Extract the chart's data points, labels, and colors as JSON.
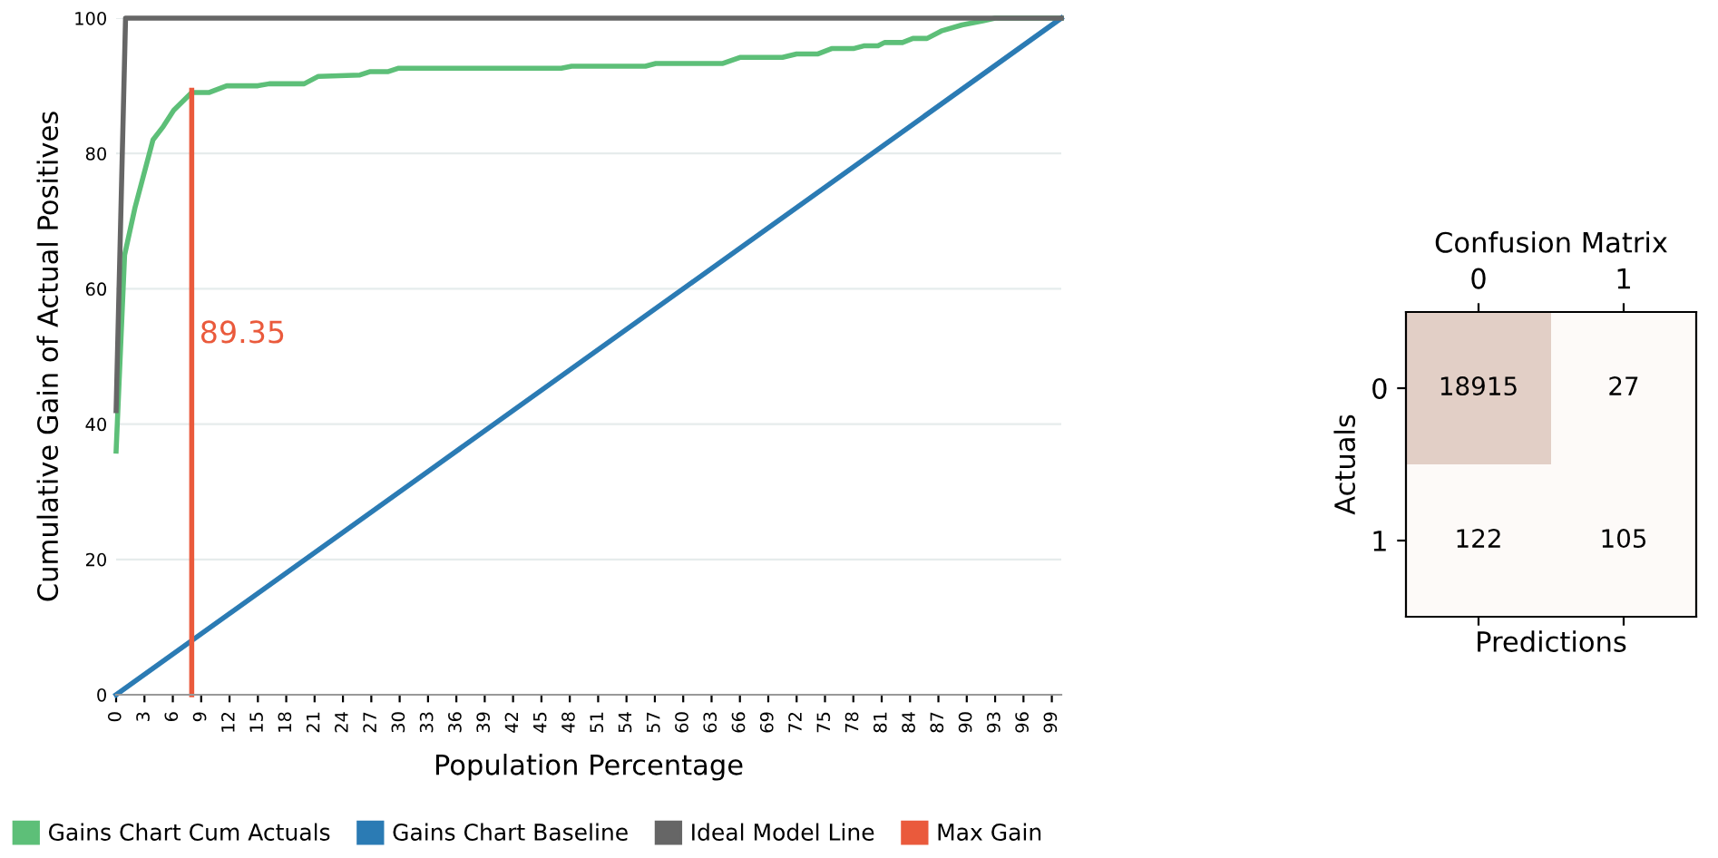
{
  "chart_data": [
    {
      "type": "line",
      "xlabel": "Population Percentage",
      "ylabel": "Cumulative Gain of Actual Positives",
      "xlim": [
        0,
        100
      ],
      "xticks": [
        0,
        3,
        6,
        9,
        12,
        15,
        18,
        21,
        24,
        27,
        30,
        33,
        36,
        39,
        42,
        45,
        48,
        51,
        54,
        57,
        60,
        63,
        66,
        69,
        72,
        75,
        78,
        81,
        84,
        87,
        90,
        93,
        96,
        99
      ],
      "ylim": [
        0,
        100
      ],
      "yticks": [
        0,
        20,
        40,
        60,
        80,
        100
      ],
      "grid": "y",
      "legend": "bottom",
      "marker": "none",
      "line_style": "solid",
      "series": [
        {
          "name": "Gains Chart Cum Actuals",
          "color": "#5dbf78",
          "x": [
            0,
            0.9,
            2.0,
            3.9,
            5.0,
            6.1,
            8.0,
            9.8,
            11.7,
            15.0,
            16.2,
            19.9,
            21.4,
            25.8,
            26.9,
            28.8,
            29.9,
            47.1,
            48.2,
            56.0,
            57.1,
            64.2,
            66.0,
            70.5,
            72.0,
            74.2,
            75.7,
            78.0,
            79.1,
            80.6,
            81.3,
            83.2,
            84.3,
            85.8,
            87.3,
            89.5,
            91.7,
            93.0,
            100
          ],
          "values": [
            36,
            65,
            72,
            82,
            84,
            86.4,
            89,
            89,
            90,
            90,
            90.3,
            90.3,
            91.4,
            91.6,
            92.1,
            92.1,
            92.6,
            92.6,
            92.9,
            92.9,
            93.3,
            93.3,
            94.2,
            94.2,
            94.7,
            94.7,
            95.5,
            95.5,
            95.9,
            95.9,
            96.4,
            96.4,
            97,
            97,
            98.1,
            99,
            99.6,
            100,
            100
          ]
        },
        {
          "name": "Gains Chart Baseline",
          "color": "#2b7bb4",
          "x": [
            0,
            100
          ],
          "values": [
            0,
            100
          ]
        },
        {
          "name": "Ideal Model Line",
          "color": "#666666",
          "x": [
            0,
            1,
            100
          ],
          "values": [
            42,
            100,
            100
          ]
        },
        {
          "name": "Max Gain",
          "color": "#ea5a3c",
          "x": [
            8,
            8
          ],
          "values": [
            0,
            89.35
          ]
        }
      ],
      "annotations": [
        "89.35"
      ]
    },
    {
      "type": "heatmap",
      "title": "Confusion Matrix",
      "xlabel": "Predictions",
      "ylabel": "Actuals",
      "categories": [
        "0",
        "1"
      ],
      "y_categories": [
        "0",
        "1"
      ],
      "cells": [
        [
          18915,
          27
        ],
        [
          122,
          105
        ]
      ],
      "data_labels": true
    }
  ]
}
